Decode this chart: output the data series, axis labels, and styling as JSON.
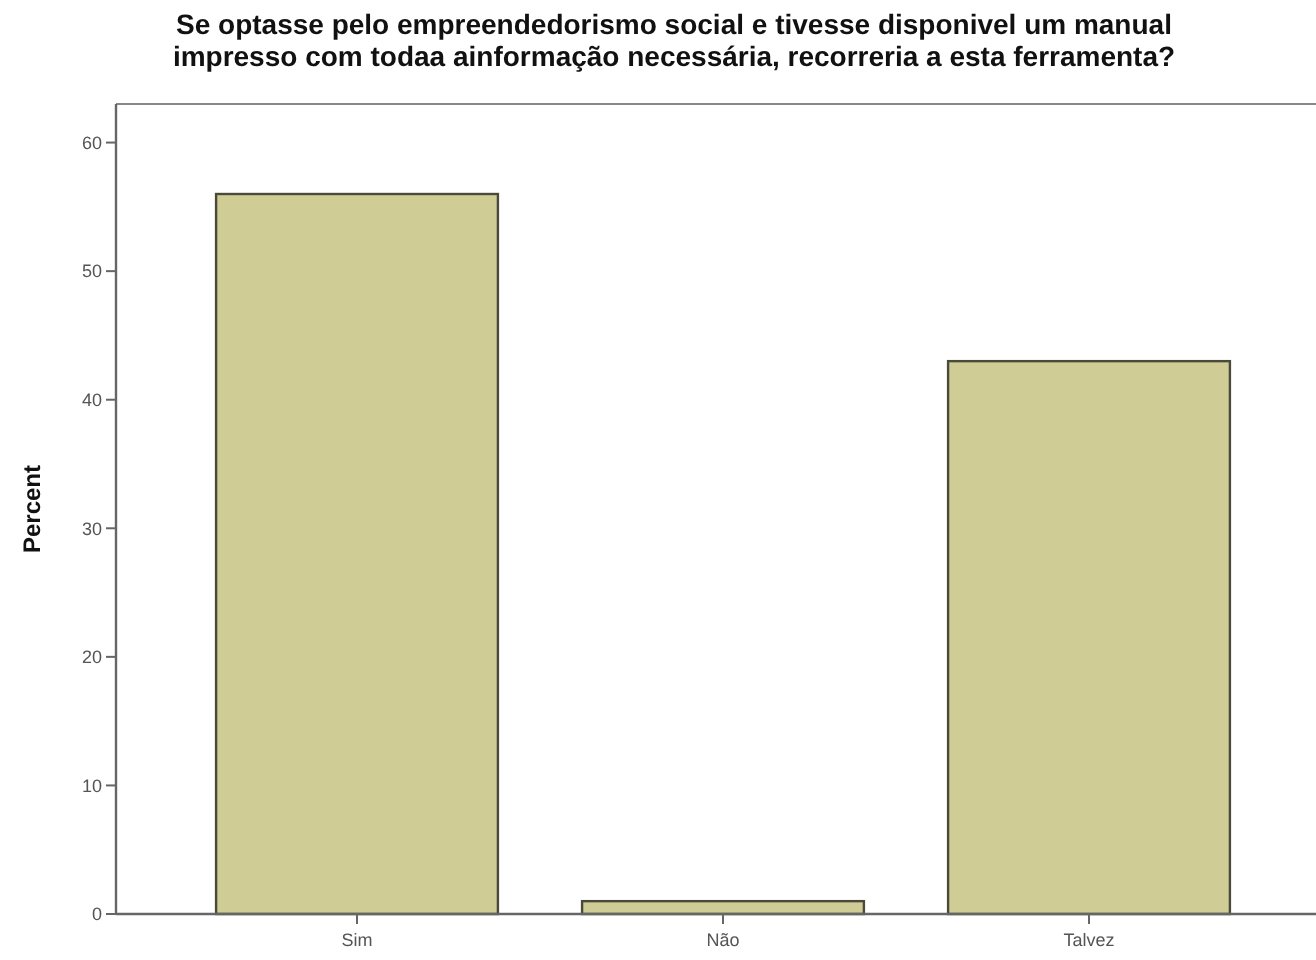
{
  "chart_data": {
    "type": "bar",
    "title": "Se optasse pelo empreendedorismo social e tivesse disponivel um manual\nimpresso com todaa ainformação necessária, recorreria a esta ferramenta?",
    "ylabel": "Percent",
    "categories": [
      "Sim",
      "Não",
      "Talvez"
    ],
    "values": [
      56,
      1,
      43
    ],
    "color": "#d0cc96",
    "ylim": [
      0,
      63
    ],
    "yticks": [
      0,
      10,
      20,
      30,
      40,
      50,
      60
    ]
  }
}
